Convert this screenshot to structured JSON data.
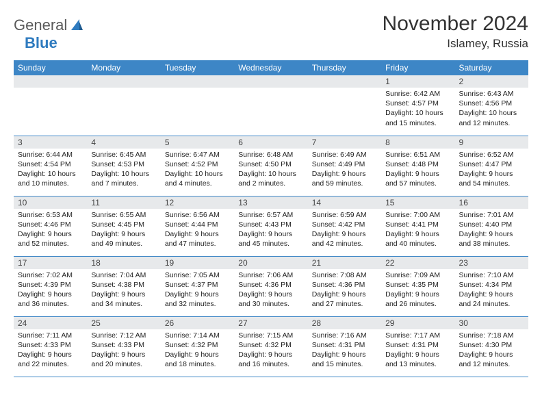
{
  "brand": {
    "part1": "General",
    "part2": "Blue"
  },
  "title": "November 2024",
  "location": "Islamey, Russia",
  "colors": {
    "header_bg": "#3d86c6",
    "daynum_bg": "#e7e9eb",
    "page_bg": "#ffffff",
    "text": "#222222",
    "brand_blue": "#2f7bbf"
  },
  "fonts": {
    "title_size": 30,
    "location_size": 17,
    "th_size": 12,
    "cell_size": 10.5
  },
  "weekdays": [
    "Sunday",
    "Monday",
    "Tuesday",
    "Wednesday",
    "Thursday",
    "Friday",
    "Saturday"
  ],
  "weeks": [
    [
      {
        "empty": true
      },
      {
        "empty": true
      },
      {
        "empty": true
      },
      {
        "empty": true
      },
      {
        "empty": true
      },
      {
        "n": "1",
        "sr": "6:42 AM",
        "ss": "4:57 PM",
        "dl": "10 hours and 15 minutes."
      },
      {
        "n": "2",
        "sr": "6:43 AM",
        "ss": "4:56 PM",
        "dl": "10 hours and 12 minutes."
      }
    ],
    [
      {
        "n": "3",
        "sr": "6:44 AM",
        "ss": "4:54 PM",
        "dl": "10 hours and 10 minutes."
      },
      {
        "n": "4",
        "sr": "6:45 AM",
        "ss": "4:53 PM",
        "dl": "10 hours and 7 minutes."
      },
      {
        "n": "5",
        "sr": "6:47 AM",
        "ss": "4:52 PM",
        "dl": "10 hours and 4 minutes."
      },
      {
        "n": "6",
        "sr": "6:48 AM",
        "ss": "4:50 PM",
        "dl": "10 hours and 2 minutes."
      },
      {
        "n": "7",
        "sr": "6:49 AM",
        "ss": "4:49 PM",
        "dl": "9 hours and 59 minutes."
      },
      {
        "n": "8",
        "sr": "6:51 AM",
        "ss": "4:48 PM",
        "dl": "9 hours and 57 minutes."
      },
      {
        "n": "9",
        "sr": "6:52 AM",
        "ss": "4:47 PM",
        "dl": "9 hours and 54 minutes."
      }
    ],
    [
      {
        "n": "10",
        "sr": "6:53 AM",
        "ss": "4:46 PM",
        "dl": "9 hours and 52 minutes."
      },
      {
        "n": "11",
        "sr": "6:55 AM",
        "ss": "4:45 PM",
        "dl": "9 hours and 49 minutes."
      },
      {
        "n": "12",
        "sr": "6:56 AM",
        "ss": "4:44 PM",
        "dl": "9 hours and 47 minutes."
      },
      {
        "n": "13",
        "sr": "6:57 AM",
        "ss": "4:43 PM",
        "dl": "9 hours and 45 minutes."
      },
      {
        "n": "14",
        "sr": "6:59 AM",
        "ss": "4:42 PM",
        "dl": "9 hours and 42 minutes."
      },
      {
        "n": "15",
        "sr": "7:00 AM",
        "ss": "4:41 PM",
        "dl": "9 hours and 40 minutes."
      },
      {
        "n": "16",
        "sr": "7:01 AM",
        "ss": "4:40 PM",
        "dl": "9 hours and 38 minutes."
      }
    ],
    [
      {
        "n": "17",
        "sr": "7:02 AM",
        "ss": "4:39 PM",
        "dl": "9 hours and 36 minutes."
      },
      {
        "n": "18",
        "sr": "7:04 AM",
        "ss": "4:38 PM",
        "dl": "9 hours and 34 minutes."
      },
      {
        "n": "19",
        "sr": "7:05 AM",
        "ss": "4:37 PM",
        "dl": "9 hours and 32 minutes."
      },
      {
        "n": "20",
        "sr": "7:06 AM",
        "ss": "4:36 PM",
        "dl": "9 hours and 30 minutes."
      },
      {
        "n": "21",
        "sr": "7:08 AM",
        "ss": "4:36 PM",
        "dl": "9 hours and 27 minutes."
      },
      {
        "n": "22",
        "sr": "7:09 AM",
        "ss": "4:35 PM",
        "dl": "9 hours and 26 minutes."
      },
      {
        "n": "23",
        "sr": "7:10 AM",
        "ss": "4:34 PM",
        "dl": "9 hours and 24 minutes."
      }
    ],
    [
      {
        "n": "24",
        "sr": "7:11 AM",
        "ss": "4:33 PM",
        "dl": "9 hours and 22 minutes."
      },
      {
        "n": "25",
        "sr": "7:12 AM",
        "ss": "4:33 PM",
        "dl": "9 hours and 20 minutes."
      },
      {
        "n": "26",
        "sr": "7:14 AM",
        "ss": "4:32 PM",
        "dl": "9 hours and 18 minutes."
      },
      {
        "n": "27",
        "sr": "7:15 AM",
        "ss": "4:32 PM",
        "dl": "9 hours and 16 minutes."
      },
      {
        "n": "28",
        "sr": "7:16 AM",
        "ss": "4:31 PM",
        "dl": "9 hours and 15 minutes."
      },
      {
        "n": "29",
        "sr": "7:17 AM",
        "ss": "4:31 PM",
        "dl": "9 hours and 13 minutes."
      },
      {
        "n": "30",
        "sr": "7:18 AM",
        "ss": "4:30 PM",
        "dl": "9 hours and 12 minutes."
      }
    ]
  ],
  "labels": {
    "sunrise": "Sunrise:",
    "sunset": "Sunset:",
    "daylight": "Daylight:"
  }
}
